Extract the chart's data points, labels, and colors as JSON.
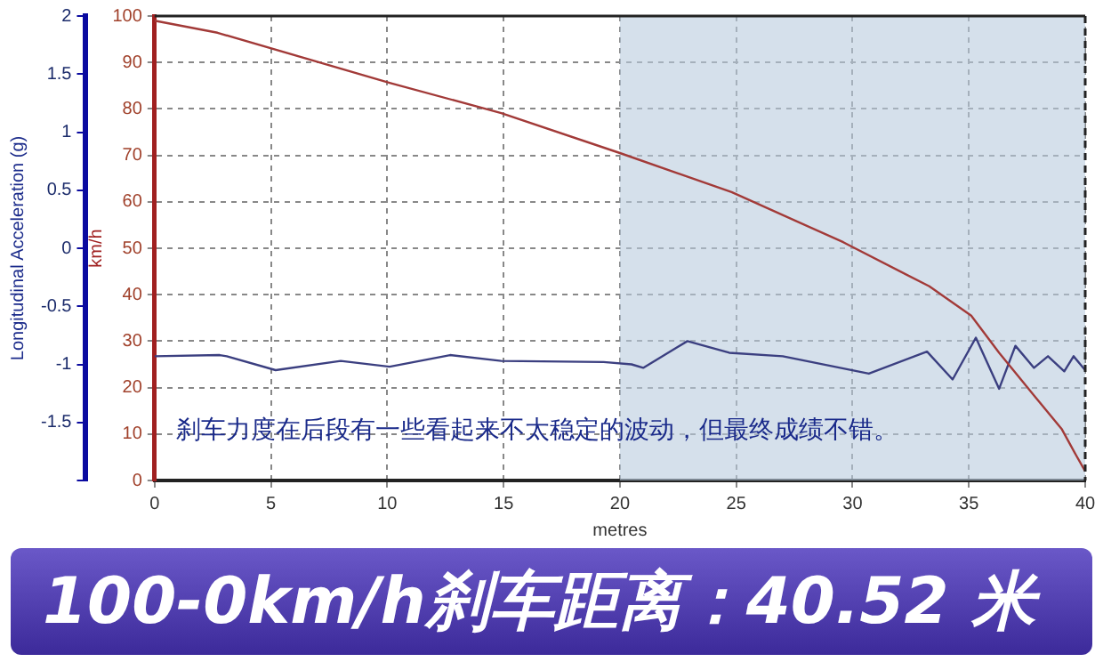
{
  "chart_data": {
    "type": "line",
    "title": "100-0km/h刹车距离：40.52 米",
    "xlabel": "metres",
    "ylabel": "Longitudinal Acceleration (g)",
    "y2label": "km/h",
    "annotations": [
      "刹车力度在后段有一些看起来不太稳定的波动，但最终成绩不错。"
    ],
    "xlim": [
      0,
      40
    ],
    "xticks": [
      0,
      5,
      10,
      15,
      20,
      25,
      30,
      35,
      40
    ],
    "ylim": [
      -2,
      2
    ],
    "yticks": [
      {
        "value": -2,
        "label": null
      },
      -1.5,
      -1,
      -0.5,
      0,
      0.5,
      1,
      1.5,
      2
    ],
    "y2lim": [
      0,
      100
    ],
    "y2ticks": [
      0,
      10,
      20,
      30,
      40,
      50,
      60,
      70,
      80,
      90,
      100
    ],
    "grid": true,
    "marker": "none",
    "line_style": "solid",
    "bands": [
      {
        "axis": "x",
        "from": 20,
        "to": 40,
        "color": "#b9ccdd"
      }
    ],
    "series": [
      {
        "color": "#a23a38",
        "axis": "y2",
        "x": [
          0,
          2.7,
          10.1,
          14.9,
          20,
          24.8,
          29.6,
          33.3,
          35.1,
          36.3,
          37.8,
          39,
          39.6,
          40
        ],
        "values": [
          99,
          96.4,
          85.6,
          79.1,
          70.5,
          62.1,
          51.3,
          41.8,
          35.5,
          27.5,
          18.3,
          11,
          5.5,
          2
        ]
      },
      {
        "color": "#3b3f80",
        "axis": "y",
        "x": [
          0,
          2.8,
          3.1,
          5.2,
          8,
          10.1,
          12.7,
          14.9,
          19.3,
          20.5,
          21,
          22.9,
          24.7,
          27,
          30.7,
          33.2,
          34.3,
          35.3,
          36.3,
          37,
          37.8,
          38.4,
          39.1,
          39.5,
          40
        ],
        "values": [
          -0.93,
          -0.92,
          -0.93,
          -1.05,
          -0.97,
          -1.02,
          -0.92,
          -0.97,
          -0.98,
          -1.0,
          -1.03,
          -0.8,
          -0.9,
          -0.93,
          -1.08,
          -0.89,
          -1.13,
          -0.77,
          -1.21,
          -0.84,
          -1.03,
          -0.93,
          -1.06,
          -0.93,
          -1.05
        ]
      }
    ]
  }
}
